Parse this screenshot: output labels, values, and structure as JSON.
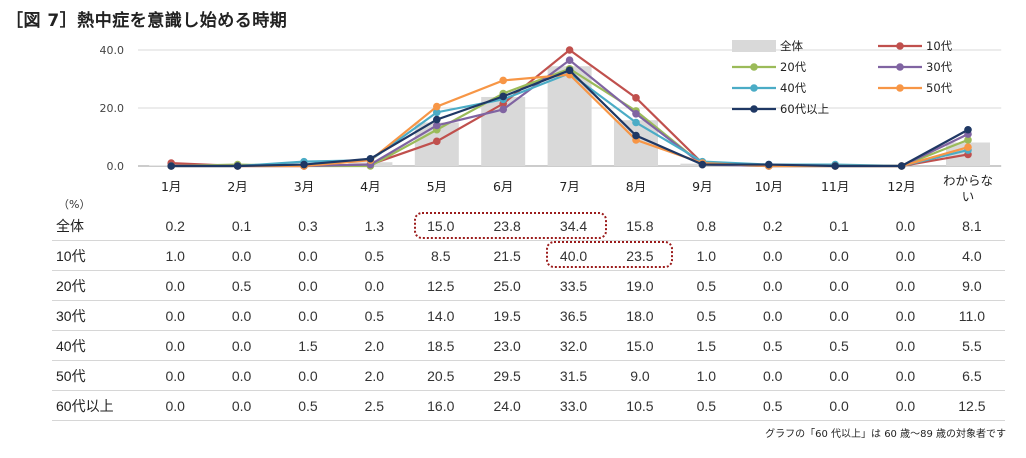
{
  "title": "［図 7］熱中症を意識し始める時期",
  "unit_label": "（%）",
  "footnote": "グラフの「60 代以上」は 60 歳～89 歳の対象者です",
  "chart_data": {
    "type": "bar+line",
    "categories": [
      "1月",
      "2月",
      "3月",
      "4月",
      "5月",
      "6月",
      "7月",
      "8月",
      "9月",
      "10月",
      "11月",
      "12月",
      "わからない"
    ],
    "ylim": [
      0,
      40
    ],
    "yticks": [
      "0.0",
      "20.0",
      "40.0"
    ],
    "grid": true,
    "legend_position": "top-right",
    "series": [
      {
        "name": "全体",
        "kind": "bar",
        "color": "#d9d9d9",
        "values": [
          0.2,
          0.1,
          0.3,
          1.3,
          15.0,
          23.8,
          34.4,
          15.8,
          0.8,
          0.2,
          0.1,
          0.0,
          8.1
        ]
      },
      {
        "name": "10代",
        "kind": "line",
        "color": "#c0504d",
        "values": [
          1.0,
          0.0,
          0.0,
          0.5,
          8.5,
          21.5,
          40.0,
          23.5,
          1.0,
          0.0,
          0.0,
          0.0,
          4.0
        ]
      },
      {
        "name": "20代",
        "kind": "line",
        "color": "#9bbb59",
        "values": [
          0.0,
          0.5,
          0.0,
          0.0,
          12.5,
          25.0,
          33.5,
          19.0,
          0.5,
          0.0,
          0.0,
          0.0,
          9.0
        ]
      },
      {
        "name": "30代",
        "kind": "line",
        "color": "#8064a2",
        "values": [
          0.0,
          0.0,
          0.0,
          0.5,
          14.0,
          19.5,
          36.5,
          18.0,
          0.5,
          0.0,
          0.0,
          0.0,
          11.0
        ]
      },
      {
        "name": "40代",
        "kind": "line",
        "color": "#4bacc6",
        "values": [
          0.0,
          0.0,
          1.5,
          2.0,
          18.5,
          23.0,
          32.0,
          15.0,
          1.5,
          0.5,
          0.5,
          0.0,
          5.5
        ]
      },
      {
        "name": "50代",
        "kind": "line",
        "color": "#f79646",
        "values": [
          0.0,
          0.0,
          0.0,
          2.0,
          20.5,
          29.5,
          31.5,
          9.0,
          1.0,
          0.0,
          0.0,
          0.0,
          6.5
        ]
      },
      {
        "name": "60代以上",
        "kind": "line",
        "color": "#1f3864",
        "values": [
          0.0,
          0.0,
          0.5,
          2.5,
          16.0,
          24.0,
          33.0,
          10.5,
          0.5,
          0.5,
          0.0,
          0.0,
          12.5
        ]
      }
    ],
    "table": {
      "rows": [
        {
          "label": "全体",
          "values": [
            "0.2",
            "0.1",
            "0.3",
            "1.3",
            "15.0",
            "23.8",
            "34.4",
            "15.8",
            "0.8",
            "0.2",
            "0.1",
            "0.0",
            "8.1"
          ]
        },
        {
          "label": "10代",
          "values": [
            "1.0",
            "0.0",
            "0.0",
            "0.5",
            "8.5",
            "21.5",
            "40.0",
            "23.5",
            "1.0",
            "0.0",
            "0.0",
            "0.0",
            "4.0"
          ]
        },
        {
          "label": "20代",
          "values": [
            "0.0",
            "0.5",
            "0.0",
            "0.0",
            "12.5",
            "25.0",
            "33.5",
            "19.0",
            "0.5",
            "0.0",
            "0.0",
            "0.0",
            "9.0"
          ]
        },
        {
          "label": "30代",
          "values": [
            "0.0",
            "0.0",
            "0.0",
            "0.5",
            "14.0",
            "19.5",
            "36.5",
            "18.0",
            "0.5",
            "0.0",
            "0.0",
            "0.0",
            "11.0"
          ]
        },
        {
          "label": "40代",
          "values": [
            "0.0",
            "0.0",
            "1.5",
            "2.0",
            "18.5",
            "23.0",
            "32.0",
            "15.0",
            "1.5",
            "0.5",
            "0.5",
            "0.0",
            "5.5"
          ]
        },
        {
          "label": "50代",
          "values": [
            "0.0",
            "0.0",
            "0.0",
            "2.0",
            "20.5",
            "29.5",
            "31.5",
            "9.0",
            "1.0",
            "0.0",
            "0.0",
            "0.0",
            "6.5"
          ]
        },
        {
          "label": "60代以上",
          "values": [
            "0.0",
            "0.0",
            "0.5",
            "2.5",
            "16.0",
            "24.0",
            "33.0",
            "10.5",
            "0.5",
            "0.5",
            "0.0",
            "0.0",
            "12.5"
          ]
        }
      ],
      "highlights": [
        {
          "row": 0,
          "from": 4,
          "to": 6
        },
        {
          "row": 1,
          "from": 6,
          "to": 7
        }
      ]
    }
  }
}
